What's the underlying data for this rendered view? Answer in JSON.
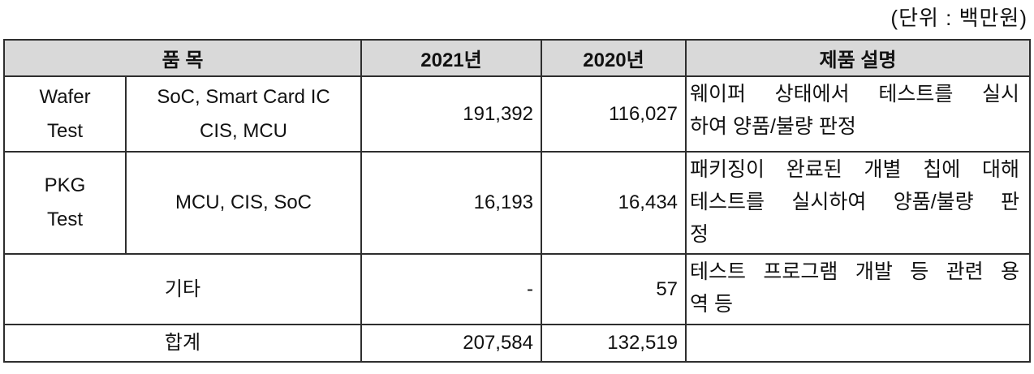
{
  "unit_label": "(단위 : 백만원)",
  "colors": {
    "header_bg": "#d9d9d9",
    "border": "#2e2e2e",
    "text": "#111111"
  },
  "table": {
    "headers": {
      "item": "품 목",
      "y2021": "2021년",
      "y2020": "2020년",
      "description": "제품 설명"
    },
    "rows": [
      {
        "category": "Wafer\nTest",
        "products": "SoC, Smart Card IC\nCIS, MCU",
        "y2021": "191,392",
        "y2020": "116,027",
        "description_lines": [
          "웨이퍼 상태에서 테스트를 실시",
          "하여 양품/불량 판정"
        ]
      },
      {
        "category": "PKG\nTest",
        "products": "MCU, CIS, SoC",
        "y2021": "16,193",
        "y2020": "16,434",
        "description_lines": [
          "패키징이 완료된 개별 칩에 대해",
          "테스트를 실시하여 양품/불량 판",
          "정"
        ]
      },
      {
        "category": "기타",
        "y2021": "-",
        "y2020": "57",
        "description_lines": [
          "테스트 프로그램 개발 등 관련 용",
          "역 등"
        ]
      },
      {
        "category": "합계",
        "y2021": "207,584",
        "y2020": "132,519",
        "description_lines": []
      }
    ]
  }
}
